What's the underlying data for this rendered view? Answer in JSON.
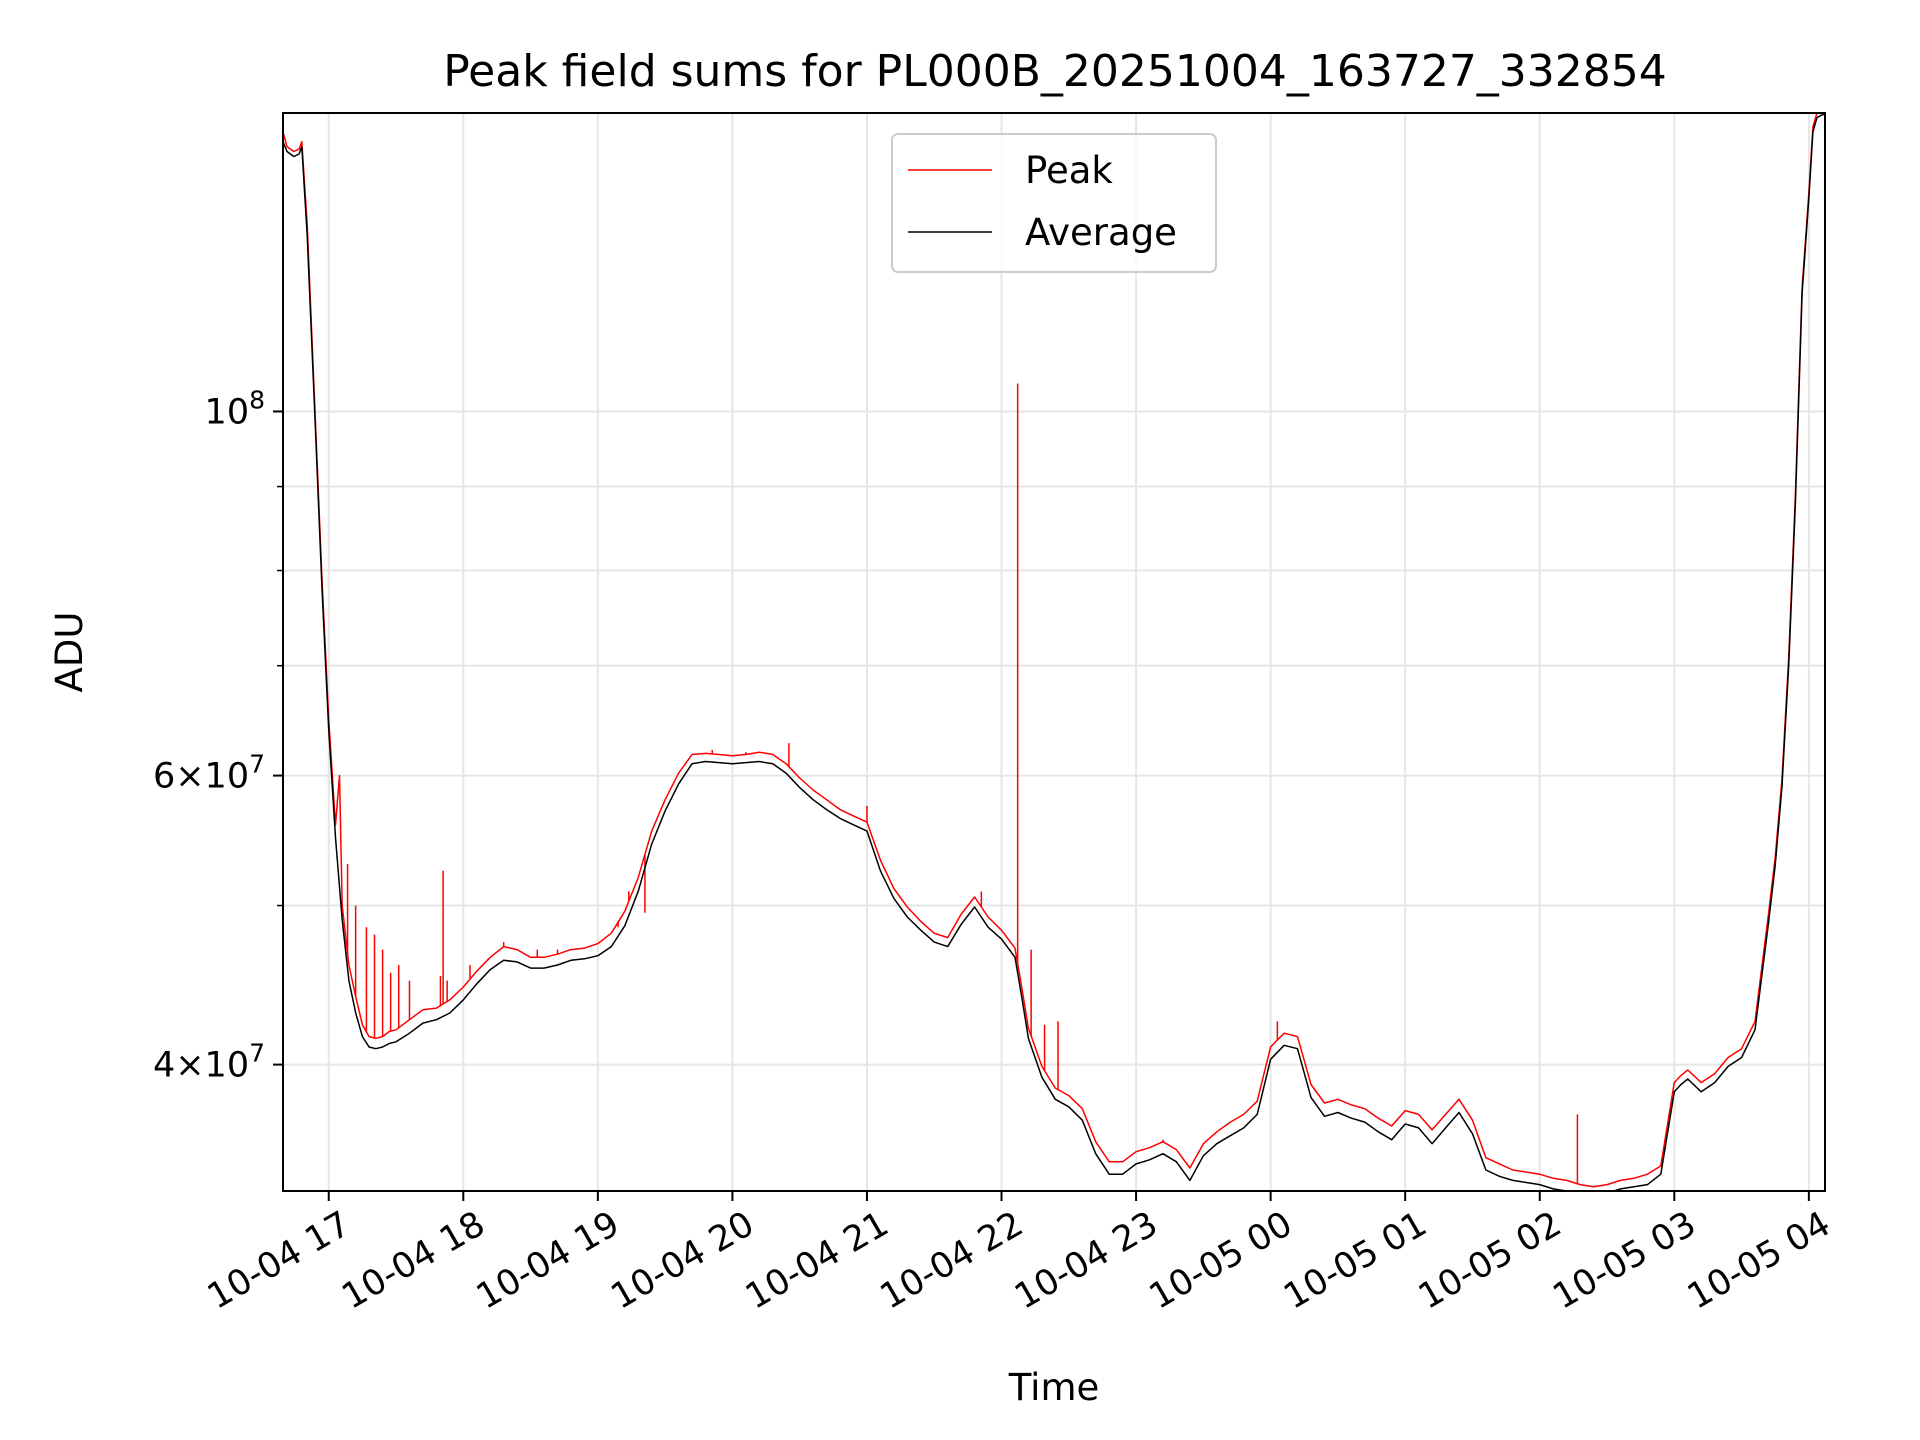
{
  "chart_data": {
    "type": "line",
    "title": "Peak field sums for PL000B_20251004_163727_332854",
    "xlabel": "Time",
    "ylabel": "ADU",
    "yscale": "log",
    "grid": true,
    "legend_position": "top-center",
    "xlim": [
      16.66,
      28.12
    ],
    "ylim": [
      33500000,
      152000000
    ],
    "x_ticks": [
      {
        "value": 17,
        "label": "10-04 17"
      },
      {
        "value": 18,
        "label": "10-04 18"
      },
      {
        "value": 19,
        "label": "10-04 19"
      },
      {
        "value": 20,
        "label": "10-04 20"
      },
      {
        "value": 21,
        "label": "10-04 21"
      },
      {
        "value": 22,
        "label": "10-04 22"
      },
      {
        "value": 23,
        "label": "10-04 23"
      },
      {
        "value": 24,
        "label": "10-05 00"
      },
      {
        "value": 25,
        "label": "10-05 01"
      },
      {
        "value": 26,
        "label": "10-05 02"
      },
      {
        "value": 27,
        "label": "10-05 03"
      },
      {
        "value": 28,
        "label": "10-05 04"
      }
    ],
    "y_major_ticks": [
      {
        "value": 40000000,
        "mant": "4",
        "exp": "7"
      },
      {
        "value": 60000000,
        "mant": "6",
        "exp": "7"
      },
      {
        "value": 100000000,
        "mant": "",
        "exp": "8"
      }
    ],
    "y_minor_ticks": [
      50000000,
      70000000,
      80000000,
      90000000
    ],
    "series": [
      {
        "name": "Average",
        "color": "#000000",
        "x": [
          16.66,
          16.69,
          16.74,
          16.78,
          16.8,
          16.84,
          16.9,
          16.95,
          17.0,
          17.05,
          17.1,
          17.15,
          17.2,
          17.25,
          17.3,
          17.35,
          17.4,
          17.45,
          17.5,
          17.6,
          17.7,
          17.8,
          17.9,
          18.0,
          18.1,
          18.2,
          18.3,
          18.4,
          18.5,
          18.6,
          18.7,
          18.8,
          18.9,
          19.0,
          19.1,
          19.2,
          19.3,
          19.4,
          19.5,
          19.6,
          19.7,
          19.8,
          19.9,
          20.0,
          20.1,
          20.2,
          20.3,
          20.4,
          20.5,
          20.6,
          20.7,
          20.8,
          20.9,
          21.0,
          21.1,
          21.2,
          21.3,
          21.4,
          21.5,
          21.6,
          21.7,
          21.8,
          21.9,
          22.0,
          22.1,
          22.15,
          22.2,
          22.3,
          22.4,
          22.5,
          22.6,
          22.7,
          22.8,
          22.9,
          23.0,
          23.1,
          23.2,
          23.3,
          23.4,
          23.5,
          23.6,
          23.7,
          23.8,
          23.9,
          24.0,
          24.1,
          24.2,
          24.3,
          24.4,
          24.5,
          24.6,
          24.7,
          24.8,
          24.9,
          25.0,
          25.1,
          25.2,
          25.3,
          25.4,
          25.5,
          25.6,
          25.7,
          25.8,
          25.9,
          26.0,
          26.1,
          26.2,
          26.3,
          26.4,
          26.5,
          26.6,
          26.7,
          26.8,
          26.9,
          27.0,
          27.05,
          27.1,
          27.2,
          27.3,
          27.4,
          27.5,
          27.6,
          27.7,
          27.75,
          27.8,
          27.85,
          27.9,
          27.95,
          28.0,
          28.03,
          28.06,
          28.09,
          28.12
        ],
        "y": [
          146000000,
          144000000,
          143000000,
          143500000,
          145000000,
          128000000,
          98000000,
          78000000,
          64000000,
          55000000,
          49000000,
          45000000,
          43000000,
          41600000,
          41000000,
          40900000,
          41000000,
          41200000,
          41300000,
          41800000,
          42400000,
          42600000,
          43000000,
          43800000,
          44800000,
          45700000,
          46300000,
          46200000,
          45800000,
          45800000,
          46000000,
          46300000,
          46400000,
          46600000,
          47200000,
          48600000,
          51000000,
          54500000,
          57100000,
          59300000,
          61000000,
          61200000,
          61100000,
          61000000,
          61100000,
          61200000,
          61000000,
          60200000,
          59000000,
          58000000,
          57200000,
          56500000,
          56000000,
          55500000,
          52500000,
          50500000,
          49200000,
          48300000,
          47500000,
          47200000,
          48700000,
          49900000,
          48500000,
          47700000,
          46500000,
          44000000,
          41500000,
          39300000,
          38100000,
          37700000,
          37000000,
          35300000,
          34300000,
          34300000,
          34800000,
          35000000,
          35300000,
          34900000,
          34000000,
          35200000,
          35800000,
          36200000,
          36600000,
          37300000,
          40300000,
          41100000,
          40900000,
          38200000,
          37200000,
          37400000,
          37100000,
          36900000,
          36400000,
          36000000,
          36800000,
          36600000,
          35800000,
          36600000,
          37400000,
          36300000,
          34500000,
          34200000,
          34000000,
          33900000,
          33800000,
          33600000,
          33500000,
          33400000,
          33300000,
          33400000,
          33600000,
          33700000,
          33800000,
          34300000,
          38500000,
          38900000,
          39200000,
          38500000,
          39000000,
          39900000,
          40400000,
          42000000,
          48800000,
          52900000,
          59000000,
          70000000,
          88000000,
          118000000,
          135000000,
          148000000,
          151000000,
          151500000,
          151800000
        ]
      },
      {
        "name": "Peak",
        "color": "#ff0000",
        "x": [
          16.66,
          16.69,
          16.74,
          16.78,
          16.8,
          16.84,
          16.9,
          16.95,
          17.0,
          17.05,
          17.08,
          17.1,
          17.15,
          17.2,
          17.25,
          17.3,
          17.35,
          17.4,
          17.45,
          17.5,
          17.6,
          17.7,
          17.8,
          17.9,
          18.0,
          18.1,
          18.2,
          18.3,
          18.4,
          18.5,
          18.6,
          18.7,
          18.8,
          18.9,
          19.0,
          19.1,
          19.2,
          19.3,
          19.4,
          19.5,
          19.6,
          19.7,
          19.8,
          19.9,
          20.0,
          20.1,
          20.2,
          20.3,
          20.4,
          20.5,
          20.6,
          20.7,
          20.8,
          20.9,
          21.0,
          21.1,
          21.2,
          21.3,
          21.4,
          21.5,
          21.6,
          21.7,
          21.8,
          21.9,
          22.0,
          22.1,
          22.15,
          22.2,
          22.3,
          22.4,
          22.5,
          22.6,
          22.7,
          22.8,
          22.9,
          23.0,
          23.1,
          23.2,
          23.3,
          23.4,
          23.5,
          23.6,
          23.7,
          23.8,
          23.9,
          24.0,
          24.1,
          24.2,
          24.3,
          24.4,
          24.5,
          24.6,
          24.7,
          24.8,
          24.9,
          25.0,
          25.1,
          25.2,
          25.3,
          25.4,
          25.5,
          25.6,
          25.7,
          25.8,
          25.9,
          26.0,
          26.1,
          26.2,
          26.3,
          26.4,
          26.5,
          26.6,
          26.7,
          26.8,
          26.9,
          27.0,
          27.05,
          27.1,
          27.2,
          27.3,
          27.4,
          27.5,
          27.6,
          27.7,
          27.75,
          27.8,
          27.85,
          27.9,
          27.95,
          28.0,
          28.03,
          28.06,
          28.09,
          28.12
        ],
        "y": [
          148000000,
          145000000,
          144000000,
          144500000,
          146000000,
          130000000,
          99000000,
          79000000,
          65000000,
          56000000,
          60000000,
          50000000,
          46000000,
          44000000,
          42300000,
          41600000,
          41500000,
          41600000,
          41900000,
          42000000,
          42600000,
          43200000,
          43300000,
          43800000,
          44600000,
          45600000,
          46500000,
          47200000,
          47000000,
          46500000,
          46500000,
          46700000,
          47000000,
          47100000,
          47400000,
          48100000,
          49600000,
          52000000,
          55500000,
          58000000,
          60200000,
          61800000,
          61900000,
          61800000,
          61700000,
          61800000,
          62000000,
          61800000,
          61000000,
          59800000,
          58800000,
          58000000,
          57200000,
          56700000,
          56200000,
          53300000,
          51200000,
          49900000,
          48900000,
          48100000,
          47800000,
          49400000,
          50600000,
          49200000,
          48300000,
          47100000,
          44600000,
          42100000,
          39900000,
          38700000,
          38300000,
          37600000,
          35900000,
          34900000,
          34900000,
          35400000,
          35600000,
          35900000,
          35500000,
          34600000,
          35800000,
          36400000,
          36900000,
          37300000,
          38000000,
          41000000,
          41800000,
          41600000,
          38900000,
          37900000,
          38100000,
          37800000,
          37600000,
          37100000,
          36700000,
          37500000,
          37300000,
          36500000,
          37300000,
          38100000,
          37000000,
          35100000,
          34800000,
          34500000,
          34400000,
          34300000,
          34100000,
          34000000,
          33800000,
          33700000,
          33800000,
          34000000,
          34100000,
          34300000,
          34700000,
          39000000,
          39400000,
          39700000,
          39000000,
          39500000,
          40400000,
          40900000,
          42500000,
          49400000,
          53500000,
          59600000,
          70800000,
          89000000,
          119000000,
          136000000,
          149000000,
          152000000,
          152500000,
          152800000
        ]
      }
    ],
    "peak_spikes": [
      {
        "x": 17.14,
        "y": 53000000
      },
      {
        "x": 17.2,
        "y": 50000000
      },
      {
        "x": 17.28,
        "y": 48500000
      },
      {
        "x": 17.34,
        "y": 48000000
      },
      {
        "x": 17.4,
        "y": 47000000
      },
      {
        "x": 17.46,
        "y": 45500000
      },
      {
        "x": 17.52,
        "y": 46000000
      },
      {
        "x": 17.6,
        "y": 45000000
      },
      {
        "x": 17.83,
        "y": 45300000
      },
      {
        "x": 17.85,
        "y": 52500000
      },
      {
        "x": 17.88,
        "y": 45000000
      },
      {
        "x": 18.05,
        "y": 46000000
      },
      {
        "x": 18.3,
        "y": 47500000
      },
      {
        "x": 18.55,
        "y": 47000000
      },
      {
        "x": 18.7,
        "y": 47000000
      },
      {
        "x": 19.15,
        "y": 48500000
      },
      {
        "x": 19.23,
        "y": 51000000
      },
      {
        "x": 19.35,
        "y": 49500000
      },
      {
        "x": 19.85,
        "y": 62200000
      },
      {
        "x": 20.1,
        "y": 62000000
      },
      {
        "x": 20.42,
        "y": 62800000
      },
      {
        "x": 21.0,
        "y": 57500000
      },
      {
        "x": 21.85,
        "y": 51000000
      },
      {
        "x": 22.12,
        "y": 104000000
      },
      {
        "x": 22.22,
        "y": 47000000
      },
      {
        "x": 22.32,
        "y": 42300000
      },
      {
        "x": 22.42,
        "y": 42500000
      },
      {
        "x": 23.2,
        "y": 36000000
      },
      {
        "x": 24.05,
        "y": 42500000
      },
      {
        "x": 26.28,
        "y": 37300000
      }
    ]
  }
}
